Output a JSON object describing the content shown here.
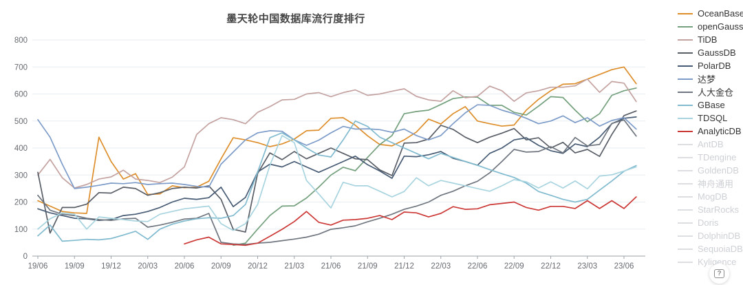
{
  "header": {
    "title": "墨天轮中国数据库流行度排行"
  },
  "help_button": {
    "glyph": "?"
  },
  "chart_data": {
    "type": "line",
    "title": "墨天轮中国数据库流行度排行",
    "xlabel": "",
    "ylabel": "",
    "ylim": [
      0,
      800
    ],
    "y_ticks": [
      0,
      100,
      200,
      300,
      400,
      500,
      600,
      700,
      800
    ],
    "grid": true,
    "legend_position": "right",
    "x_tick_every": 3,
    "categories": [
      "19/06",
      "19/07",
      "19/08",
      "19/09",
      "19/10",
      "19/11",
      "19/12",
      "20/01",
      "20/02",
      "20/03",
      "20/04",
      "20/05",
      "20/06",
      "20/07",
      "20/08",
      "20/09",
      "20/10",
      "20/11",
      "20/12",
      "21/01",
      "21/02",
      "21/03",
      "21/04",
      "21/05",
      "21/06",
      "21/07",
      "21/08",
      "21/09",
      "21/10",
      "21/11",
      "21/12",
      "22/01",
      "22/02",
      "22/03",
      "22/04",
      "22/05",
      "22/06",
      "22/07",
      "22/08",
      "22/09",
      "22/10",
      "22/11",
      "22/12",
      "23/01",
      "23/02",
      "23/03",
      "23/04",
      "23/05",
      "23/06",
      "23/07"
    ],
    "series": [
      {
        "name": "OceanBase",
        "color": "#DD8E2B",
        "values": [
          205,
          185,
          165,
          160,
          158,
          440,
          350,
          285,
          305,
          228,
          230,
          260,
          253,
          255,
          277,
          360,
          438,
          430,
          420,
          405,
          415,
          433,
          464,
          466,
          510,
          512,
          484,
          445,
          413,
          408,
          430,
          459,
          507,
          489,
          527,
          553,
          500,
          490,
          481,
          485,
          540,
          580,
          612,
          636,
          638,
          655,
          672,
          690,
          700,
          638
        ]
      },
      {
        "name": "openGauss",
        "color": "#74A07D",
        "values": [
          null,
          null,
          null,
          null,
          null,
          null,
          null,
          null,
          null,
          null,
          null,
          null,
          null,
          null,
          null,
          null,
          40,
          48,
          100,
          150,
          185,
          186,
          215,
          255,
          300,
          329,
          316,
          365,
          413,
          446,
          527,
          535,
          540,
          561,
          583,
          589,
          588,
          558,
          558,
          532,
          522,
          555,
          590,
          587,
          540,
          497,
          527,
          595,
          612,
          622
        ]
      },
      {
        "name": "TiDB",
        "color": "#C3A2A0",
        "values": [
          300,
          358,
          290,
          252,
          265,
          285,
          293,
          318,
          285,
          280,
          272,
          292,
          330,
          450,
          490,
          512,
          505,
          490,
          532,
          553,
          578,
          580,
          600,
          605,
          590,
          605,
          615,
          595,
          600,
          610,
          619,
          591,
          578,
          573,
          612,
          586,
          591,
          629,
          612,
          573,
          604,
          612,
          625,
          625,
          630,
          655,
          606,
          646,
          640,
          572
        ]
      },
      {
        "name": "GaussDB",
        "color": "#585D66",
        "values": [
          310,
          85,
          180,
          180,
          192,
          235,
          233,
          255,
          250,
          225,
          235,
          250,
          255,
          252,
          260,
          210,
          99,
          89,
          306,
          382,
          357,
          387,
          360,
          380,
          400,
          380,
          360,
          357,
          319,
          298,
          418,
          420,
          433,
          484,
          469,
          440,
          420,
          440,
          455,
          472,
          430,
          438,
          400,
          421,
          382,
          395,
          369,
          450,
          520,
          537
        ]
      },
      {
        "name": "PolarDB",
        "color": "#465A73",
        "values": [
          175,
          160,
          150,
          140,
          138,
          132,
          135,
          150,
          155,
          165,
          180,
          200,
          214,
          210,
          216,
          255,
          183,
          217,
          311,
          340,
          330,
          350,
          330,
          310,
          330,
          350,
          370,
          338,
          315,
          288,
          370,
          368,
          375,
          387,
          362,
          350,
          336,
          380,
          400,
          430,
          438,
          410,
          390,
          380,
          415,
          405,
          440,
          490,
          510,
          515
        ]
      },
      {
        "name": "达梦",
        "color": "#7D9BC8",
        "values": [
          505,
          440,
          340,
          250,
          255,
          262,
          270,
          268,
          272,
          265,
          268,
          270,
          265,
          258,
          255,
          340,
          385,
          430,
          456,
          464,
          462,
          430,
          410,
          429,
          456,
          480,
          470,
          471,
          468,
          458,
          470,
          446,
          430,
          446,
          490,
          530,
          560,
          558,
          540,
          527,
          510,
          490,
          500,
          519,
          494,
          512,
          481,
          502,
          512,
          470
        ]
      },
      {
        "name": "人大金仓",
        "color": "#70767F",
        "values": [
          225,
          170,
          155,
          150,
          140,
          135,
          132,
          138,
          140,
          107,
          115,
          125,
          137,
          140,
          158,
          51,
          45,
          43,
          48,
          51,
          57,
          63,
          70,
          81,
          99,
          105,
          112,
          127,
          140,
          155,
          173,
          185,
          200,
          225,
          240,
          260,
          277,
          308,
          350,
          395,
          385,
          387,
          405,
          382,
          439,
          408,
          413,
          491,
          504,
          444
        ]
      },
      {
        "name": "GBase",
        "color": "#80BACF",
        "values": [
          75,
          115,
          55,
          58,
          62,
          60,
          65,
          78,
          92,
          62,
          100,
          118,
          130,
          138,
          142,
          140,
          150,
          191,
          311,
          438,
          456,
          430,
          400,
          374,
          367,
          430,
          500,
          480,
          440,
          420,
          400,
          380,
          360,
          380,
          365,
          350,
          336,
          320,
          305,
          291,
          270,
          239,
          225,
          210,
          200,
          210,
          244,
          278,
          314,
          335
        ]
      },
      {
        "name": "TDSQL",
        "color": "#A8D4DF",
        "values": [
          100,
          138,
          160,
          155,
          100,
          145,
          140,
          135,
          130,
          128,
          155,
          165,
          175,
          180,
          185,
          120,
          95,
          120,
          191,
          336,
          446,
          420,
          280,
          230,
          178,
          273,
          260,
          260,
          240,
          219,
          239,
          290,
          260,
          280,
          270,
          260,
          250,
          240,
          260,
          283,
          275,
          252,
          275,
          252,
          278,
          249,
          296,
          301,
          315,
          330
        ]
      },
      {
        "name": "AnalyticDB",
        "color": "#CC3836",
        "values": [
          null,
          null,
          null,
          null,
          null,
          null,
          null,
          null,
          null,
          null,
          null,
          null,
          45,
          60,
          70,
          45,
          43,
          40,
          48,
          73,
          99,
          128,
          165,
          125,
          115,
          133,
          135,
          140,
          150,
          135,
          163,
          160,
          145,
          158,
          183,
          173,
          175,
          190,
          195,
          200,
          180,
          170,
          184,
          184,
          176,
          205,
          176,
          205,
          176,
          219
        ]
      }
    ],
    "disabled_series": [
      "AntDB",
      "TDengine",
      "GoldenDB",
      "神舟通用",
      "MogDB",
      "StarRocks",
      "Doris",
      "DolphinDB",
      "SequoiaDB",
      "Kyligence"
    ],
    "colors": {
      "grid_line": "#e6edf3",
      "axis_line": "#9aa0a6",
      "tick_text": "#666a70",
      "title_text": "#454545",
      "disabled_legend": "#cdd0d5",
      "disabled_line": "#dcdee1"
    }
  }
}
